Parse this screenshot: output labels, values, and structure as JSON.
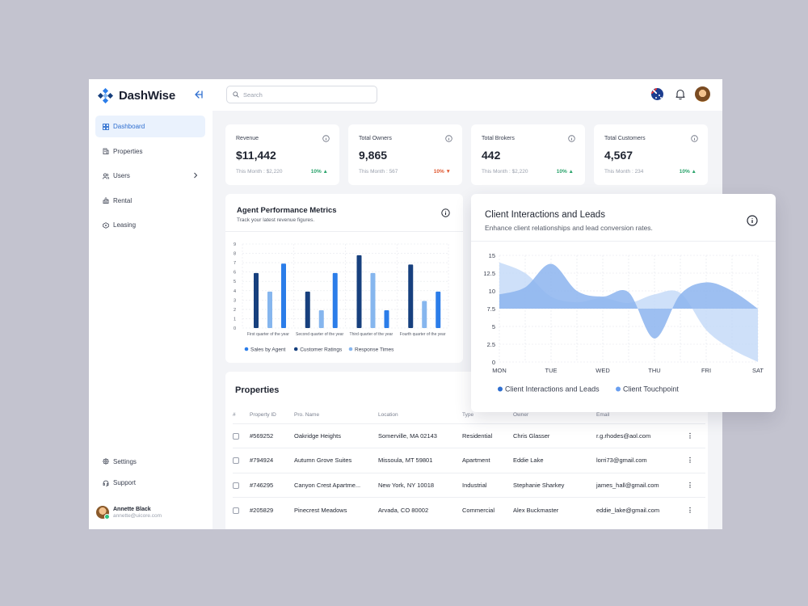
{
  "brand": {
    "name": "DashWise"
  },
  "search": {
    "placeholder": "Search"
  },
  "sidebar": {
    "items": [
      {
        "label": "Dashboard",
        "icon": "grid-icon",
        "active": true
      },
      {
        "label": "Properties",
        "icon": "building-icon"
      },
      {
        "label": "Users",
        "icon": "users-icon",
        "has_submenu": true
      },
      {
        "label": "Rental",
        "icon": "rental-icon"
      },
      {
        "label": "Leasing",
        "icon": "leasing-icon"
      }
    ],
    "bottom_items": [
      {
        "label": "Settings",
        "icon": "gear-icon"
      },
      {
        "label": "Support",
        "icon": "headset-icon"
      }
    ],
    "user": {
      "name": "Annette Black",
      "email": "annette@uicore.com"
    }
  },
  "stats": [
    {
      "label": "Revenue",
      "value": "$11,442",
      "sub": "This Month : $2,220",
      "change": "10%",
      "trend": "up"
    },
    {
      "label": "Total Owners",
      "value": "9,865",
      "sub": "This Month : 567",
      "change": "10%",
      "trend": "down"
    },
    {
      "label": "Total Brokers",
      "value": "442",
      "sub": "This Month : $2,220",
      "change": "10%",
      "trend": "up"
    },
    {
      "label": "Total Customers",
      "value": "4,567",
      "sub": "This Month : 234",
      "change": "10%",
      "trend": "up"
    }
  ],
  "agent_card": {
    "title": "Agent Performance Metrics",
    "subtitle": "Track your latest revenue figures."
  },
  "client_card": {
    "title": "Client Interactions and Leads",
    "subtitle": "Enhance client relationships and lead conversion rates."
  },
  "properties": {
    "title": "Properties",
    "columns": [
      "#",
      "Property ID",
      "Pro. Name",
      "Location",
      "Type",
      "Owner",
      "Email"
    ],
    "rows": [
      {
        "id": "#569252",
        "name": "Oakridge Heights",
        "location": "Somerville, MA 02143",
        "type": "Residential",
        "owner": "Chris Glasser",
        "email": "r.g.rhodes@aol.com"
      },
      {
        "id": "#794924",
        "name": "Autumn Grove Suites",
        "location": "Missoula, MT 59801",
        "type": "Apartment",
        "owner": "Eddie Lake",
        "email": "lorri73@gmail.com"
      },
      {
        "id": "#746295",
        "name": "Canyon Crest Apartme...",
        "location": "New York, NY 10018",
        "type": "Industrial",
        "owner": "Stephanie Sharkey",
        "email": "james_hall@gmail.com"
      },
      {
        "id": "#205829",
        "name": "Pinecrest Meadows",
        "location": "Arvada, CO 80002",
        "type": "Commercial",
        "owner": "Alex Buckmaster",
        "email": "eddie_lake@gmail.com"
      }
    ]
  },
  "colors": {
    "accent": "#2f6fd0",
    "dark_blue": "#17407e",
    "mid_blue": "#2b7de9",
    "light_blue": "#86b6ee",
    "up": "#2aa36b",
    "down": "#e0572f"
  },
  "chart_data": [
    {
      "type": "bar",
      "categories": [
        "First quarter of the year",
        "Second quarter of the year",
        "Third quarter of the year",
        "Fourth quarter of the year"
      ],
      "series": [
        {
          "name": "Customer Ratings",
          "color": "#17407e",
          "values": [
            5.9,
            3.9,
            7.8,
            6.8
          ]
        },
        {
          "name": "Response Times",
          "color": "#86b6ee",
          "values": [
            3.9,
            1.9,
            5.9,
            2.9
          ]
        },
        {
          "name": "Sales by Agent",
          "color": "#2b7de9",
          "values": [
            6.9,
            5.9,
            1.9,
            3.9
          ]
        }
      ],
      "legend": [
        "Sales by Agent",
        "Customer Ratings",
        "Response Times"
      ],
      "legend_colors": [
        "#2b7de9",
        "#17407e",
        "#86b6ee"
      ],
      "ylim": [
        0,
        9
      ],
      "yticks": [
        0,
        1,
        2,
        3,
        4,
        5,
        6,
        7,
        8,
        9
      ],
      "grid": true,
      "legend_position": "bottom"
    },
    {
      "type": "area",
      "categories": [
        "MON",
        "TUE",
        "WED",
        "THU",
        "FRI",
        "SAT"
      ],
      "series": [
        {
          "name": "Client Interactions and Leads",
          "color": "#8cb4ef",
          "x": [
            0,
            0.5,
            1,
            1.5,
            2,
            2.5,
            3,
            3.5,
            4,
            4.5,
            5
          ],
          "values": [
            9.5,
            10.5,
            13.8,
            10,
            9.2,
            9.8,
            3.3,
            9.5,
            11.2,
            10,
            7.5
          ]
        },
        {
          "name": "Client Touchpoint",
          "color": "#c2d8f8",
          "x": [
            0,
            0.5,
            1,
            1.5,
            2,
            2.5,
            3,
            3.5,
            4,
            4.5,
            5
          ],
          "values": [
            14,
            12.5,
            9.2,
            8.4,
            9,
            8.3,
            9.5,
            9.7,
            4.5,
            1.8,
            0
          ]
        }
      ],
      "baseline": 7.5,
      "legend": [
        "Client Interactions and Leads",
        "Client Touchpoint"
      ],
      "legend_colors": [
        "#2f6fd0",
        "#6a9ff0"
      ],
      "ylim": [
        0,
        15
      ],
      "yticks": [
        "0",
        "2.5",
        "5",
        "7.5",
        "10",
        "12.5",
        "15"
      ],
      "grid": true,
      "legend_position": "bottom"
    }
  ]
}
